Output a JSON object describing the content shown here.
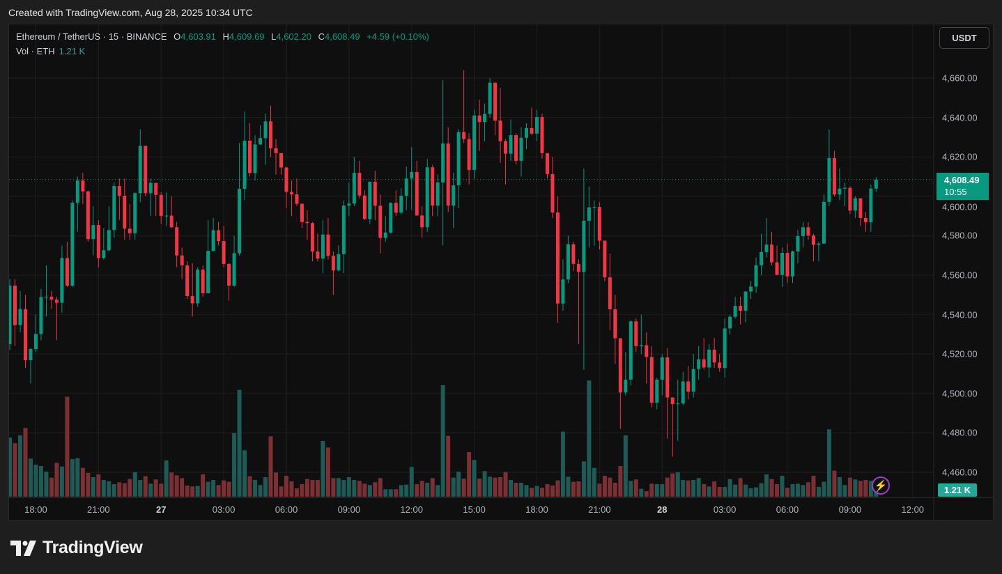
{
  "header": {
    "created": "Created with TradingView.com, Aug 28, 2025 10:34 UTC"
  },
  "legend": {
    "symbol": "Ethereum / TetherUS · 15 · BINANCE",
    "o_label": "O",
    "o": "4,603.91",
    "h_label": "H",
    "h": "4,609.69",
    "l_label": "L",
    "l": "4,602.20",
    "c_label": "C",
    "c": "4,608.49",
    "change": "+4.59 (+0.10%)",
    "vol_label": "Vol · ETH",
    "vol": "1.21 K"
  },
  "currency_button": "USDT",
  "last_price_tag": {
    "price": "4,608.49",
    "countdown": "10:55"
  },
  "volume_tag": "1.21 K",
  "logo": "TradingView",
  "colors": {
    "up": "#089981",
    "down": "#f23645",
    "vol_up": "#1e5b56",
    "vol_down": "#7d3034",
    "grid": "#1f1f1f",
    "price_line": "#089981"
  },
  "icons": {
    "alert": "lightning-icon",
    "logo": "tradingview-logo-icon"
  },
  "chart_data": {
    "type": "candlestick",
    "title": "Ethereum / TetherUS · 15 · BINANCE",
    "interval_minutes": 15,
    "ylabel": "USDT",
    "ylim": [
      4440,
      4680
    ],
    "y_ticks": [
      4460,
      4480,
      4500,
      4520,
      4540,
      4560,
      4580,
      4600,
      4620,
      4640,
      4660
    ],
    "y_tick_labels": [
      "4,460.00",
      "4,480.00",
      "4,500.00",
      "4,520.00",
      "4,540.00",
      "4,560.00",
      "4,580.00",
      "4,600.00",
      "4,620.00",
      "4,640.00",
      "4,660.00"
    ],
    "x_ticks": [
      {
        "index": 5,
        "label": "18:00",
        "day": false
      },
      {
        "index": 17,
        "label": "21:00",
        "day": false
      },
      {
        "index": 29,
        "label": "27",
        "day": true
      },
      {
        "index": 41,
        "label": "03:00",
        "day": false
      },
      {
        "index": 53,
        "label": "06:00",
        "day": false
      },
      {
        "index": 65,
        "label": "09:00",
        "day": false
      },
      {
        "index": 77,
        "label": "12:00",
        "day": false
      },
      {
        "index": 89,
        "label": "15:00",
        "day": false
      },
      {
        "index": 101,
        "label": "18:00",
        "day": false
      },
      {
        "index": 113,
        "label": "21:00",
        "day": false
      },
      {
        "index": 125,
        "label": "28",
        "day": true
      },
      {
        "index": 137,
        "label": "03:00",
        "day": false
      },
      {
        "index": 149,
        "label": "06:00",
        "day": false
      },
      {
        "index": 161,
        "label": "09:00",
        "day": false
      },
      {
        "index": 173,
        "label": "12:00",
        "day": false
      }
    ],
    "last_price": 4608.49,
    "first_open": 4525,
    "close": [
      4554.7,
      4534.7,
      4542.8,
      4516.9,
      4522.5,
      4530.1,
      4548.9,
      4549.1,
      4547.6,
      4546.0,
      4568.7,
      4554.7,
      4596.7,
      4608.0,
      4602.5,
      4578.3,
      4585.4,
      4568.7,
      4572.6,
      4582.9,
      4605.2,
      4600.3,
      4583.6,
      4581.3,
      4601.6,
      4625.6,
      4601.6,
      4606.8,
      4600.7,
      4590.0,
      4590.2,
      4584.3,
      4570.0,
      4565.0,
      4549.4,
      4545.7,
      4562.8,
      4550.8,
      4572.3,
      4582.8,
      4577.3,
      4565.7,
      4554.7,
      4571.1,
      4603.8,
      4628.2,
      4611.8,
      4626.3,
      4629.5,
      4638.0,
      4624.4,
      4621.9,
      4614.6,
      4602.2,
      4601.0,
      4596.2,
      4587.0,
      4586.4,
      4572.0,
      4568.4,
      4580.6,
      4569.8,
      4562.4,
      4570.7,
      4595.3,
      4596.3,
      4611.9,
      4600.4,
      4588.5,
      4607.4,
      4595.2,
      4578.9,
      4581.6,
      4596.7,
      4591.7,
      4600.3,
      4609.0,
      4612.3,
      4590.3,
      4584.3,
      4614.7,
      4595.3,
      4607.0,
      4626.8,
      4595.3,
      4605.6,
      4632.6,
      4629.0,
      4613.4,
      4641.0,
      4637.7,
      4641.8,
      4657.6,
      4638.4,
      4628.0,
      4621.6,
      4631.0,
      4618.0,
      4629.7,
      4634.6,
      4631.8,
      4640.2,
      4621.9,
      4611.3,
      4591.8,
      4545.6,
      4557.8,
      4575.7,
      4565.7,
      4561.7,
      4587.6,
      4594.4,
      4594.6,
      4577.5,
      4558.9,
      4542.7,
      4528.0,
      4500.5,
      4507.0,
      4536.6,
      4524.0,
      4524.5,
      4518.5,
      4495.3,
      4507.0,
      4518.3,
      4498.0,
      4494.6,
      4494.9,
      4506.1,
      4500.9,
      4512.4,
      4517.3,
      4513.2,
      4522.2,
      4515.7,
      4512.9,
      4533.0,
      4538.9,
      4544.4,
      4542.0,
      4551.7,
      4554.2,
      4565.0,
      4571.7,
      4575.5,
      4566.5,
      4560.1,
      4571.3,
      4559.4,
      4572.0,
      4579.8,
      4584.3,
      4580.1,
      4575.4,
      4576.0,
      4597.2,
      4619.4,
      4600.9,
      4603.9,
      4604.3,
      4592.8,
      4599.0,
      4589.0,
      4586.9,
      4603.91,
      4608.49
    ],
    "high": [
      4558,
      4558,
      4552,
      4550,
      4523,
      4540,
      4553,
      4565,
      4552,
      4549,
      4575,
      4577,
      4598,
      4610,
      4612,
      4603,
      4595,
      4588,
      4584,
      4595,
      4607,
      4609,
      4609,
      4596,
      4602,
      4634,
      4625.6,
      4609,
      4606.8,
      4602,
      4602,
      4600,
      4587,
      4574,
      4567,
      4566,
      4564,
      4565,
      4588,
      4589,
      4587,
      4585,
      4566,
      4580,
      4627,
      4643,
      4637,
      4631,
      4636,
      4642,
      4646,
      4629,
      4622,
      4615,
      4608,
      4609,
      4596.5,
      4593,
      4587,
      4581,
      4588,
      4589,
      4572,
      4575,
      4598,
      4607,
      4620,
      4618,
      4603,
      4607.5,
      4613,
      4601,
      4590,
      4597,
      4603,
      4604,
      4615,
      4625,
      4618,
      4595,
      4619,
      4616,
      4611,
      4659,
      4635,
      4612,
      4634,
      4664,
      4632,
      4644,
      4649,
      4647,
      4660,
      4658,
      4655,
      4629,
      4639,
      4632,
      4635,
      4637,
      4645,
      4644,
      4642,
      4622,
      4620,
      4600,
      4568,
      4580,
      4577,
      4568,
      4614,
      4605,
      4598,
      4597,
      4577.5,
      4571,
      4550,
      4528,
      4521,
      4537,
      4538,
      4540,
      4531,
      4524,
      4508,
      4520,
      4523,
      4498,
      4507,
      4511,
      4514,
      4520,
      4524,
      4528,
      4525,
      4528,
      4520,
      4538,
      4540,
      4549,
      4549,
      4552,
      4557,
      4569,
      4581,
      4589,
      4582,
      4575,
      4574,
      4576,
      4572.5,
      4583,
      4587,
      4587,
      4581,
      4577,
      4601,
      4634,
      4623,
      4614,
      4607,
      4605,
      4600,
      4599,
      4592,
      4606,
      4609.69
    ],
    "low": [
      4522,
      4524,
      4531,
      4513,
      4505,
      4521,
      4527,
      4539,
      4543,
      4527,
      4541,
      4554,
      4554,
      4582,
      4596,
      4577,
      4570,
      4564,
      4568,
      4572,
      4579,
      4588,
      4578,
      4578,
      4578,
      4597,
      4600,
      4590,
      4590,
      4586,
      4585,
      4584,
      4564,
      4558,
      4548,
      4539,
      4544,
      4549,
      4551,
      4572,
      4575,
      4564,
      4547,
      4554,
      4570,
      4598,
      4610,
      4608,
      4626,
      4616,
      4620,
      4611,
      4611,
      4594,
      4590,
      4595,
      4584,
      4578,
      4567,
      4567,
      4561,
      4568,
      4550,
      4562,
      4561,
      4590,
      4595,
      4599,
      4588,
      4586,
      4588,
      4571,
      4577,
      4581,
      4590,
      4591,
      4593,
      4593,
      4590,
      4579,
      4582,
      4590,
      4590,
      4575,
      4592,
      4584,
      4594,
      4627,
      4606,
      4609,
      4623,
      4628,
      4640,
      4631,
      4617,
      4606,
      4618,
      4616,
      4610,
      4624,
      4631,
      4628,
      4619,
      4609,
      4589,
      4536,
      4542,
      4556,
      4562,
      4525,
      4512,
      4574,
      4575,
      4573,
      4557,
      4532,
      4515,
      4482,
      4499,
      4504,
      4521,
      4520,
      4505,
      4493,
      4492,
      4499,
      4477,
      4468,
      4476,
      4494,
      4497,
      4498,
      4507,
      4512,
      4508,
      4513,
      4511,
      4508,
      4530,
      4538,
      4535,
      4536,
      4548,
      4551,
      4560,
      4569,
      4565,
      4560,
      4554,
      4556,
      4556,
      4566,
      4574,
      4578,
      4567,
      4567,
      4576,
      4595,
      4600,
      4598,
      4595,
      4591,
      4589,
      4585,
      4582,
      4582,
      4602.2
    ],
    "volume_k": [
      12.7,
      11.5,
      13.2,
      14.8,
      8.2,
      6.9,
      6.6,
      5.4,
      4.1,
      7.3,
      6.5,
      21.5,
      8.1,
      8.3,
      6.2,
      5.1,
      4.2,
      4.8,
      3.6,
      3.3,
      2.7,
      3.1,
      2.9,
      3.8,
      5.3,
      3.6,
      4.4,
      2.8,
      3.7,
      2.8,
      7.8,
      5.2,
      4.6,
      4.0,
      2.4,
      2.2,
      2.3,
      4.8,
      3.2,
      3.6,
      2.5,
      3.5,
      3.2,
      13.7,
      23.0,
      10.0,
      4.4,
      3.6,
      2.5,
      4.2,
      13.0,
      5.2,
      2.2,
      4.5,
      3.3,
      1.8,
      2.7,
      3.8,
      3.6,
      3.6,
      12.0,
      10.6,
      4.0,
      4.0,
      3.6,
      4.2,
      3.6,
      3.4,
      2.8,
      2.5,
      3.1,
      4.0,
      1.6,
      1.6,
      1.6,
      2.5,
      2.6,
      6.4,
      2.7,
      3.4,
      3.0,
      4.0,
      2.5,
      24.0,
      13.1,
      4.1,
      5.4,
      3.9,
      9.6,
      7.9,
      3.9,
      5.5,
      4.3,
      4.1,
      4.2,
      5.3,
      3.6,
      3.0,
      3.0,
      2.5,
      1.9,
      2.3,
      1.9,
      2.7,
      2.4,
      3.5,
      14.0,
      4.3,
      3.2,
      3.3,
      7.6,
      25.0,
      6.2,
      2.8,
      4.5,
      4.1,
      3.0,
      6.6,
      13.2,
      3.4,
      3.7,
      1.7,
      1.2,
      2.8,
      2.7,
      2.7,
      4.1,
      5.0,
      5.3,
      3.6,
      3.5,
      3.6,
      4.0,
      2.7,
      2.2,
      3.3,
      2.1,
      2.1,
      3.8,
      2.6,
      4.0,
      2.6,
      1.8,
      2.0,
      2.9,
      4.8,
      3.8,
      2.7,
      4.5,
      1.9,
      2.7,
      2.8,
      2.5,
      3.1,
      4.5,
      2.1,
      3.2,
      14.5,
      5.6,
      4.2,
      2.5,
      4.1,
      3.7,
      3.4,
      3.6,
      3.4,
      1.21
    ]
  }
}
